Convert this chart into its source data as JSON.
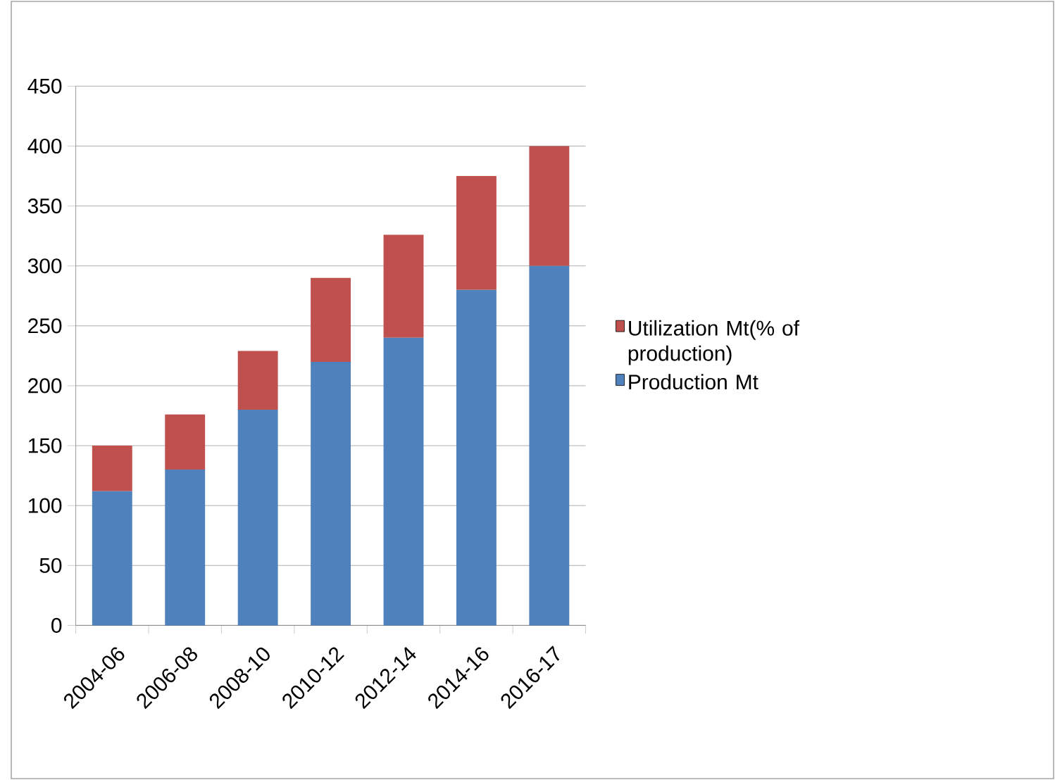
{
  "chart_data": {
    "type": "bar",
    "stacked": true,
    "categories": [
      "2004-06",
      "2006-08",
      "2008-10",
      "2010-12",
      "2012-14",
      "2014-16",
      "2016-17"
    ],
    "series": [
      {
        "name": "Production Mt",
        "color": "#4f81bd",
        "values": [
          112,
          130,
          180,
          220,
          240,
          280,
          300
        ]
      },
      {
        "name": "Utilization Mt(% of production)",
        "color": "#c0504d",
        "values": [
          38,
          46,
          49,
          70,
          86,
          95,
          100
        ]
      }
    ],
    "ylim": [
      0,
      450
    ],
    "yticks": [
      0,
      50,
      100,
      150,
      200,
      250,
      300,
      350,
      400,
      450
    ],
    "grid": "y",
    "legend": "right"
  }
}
